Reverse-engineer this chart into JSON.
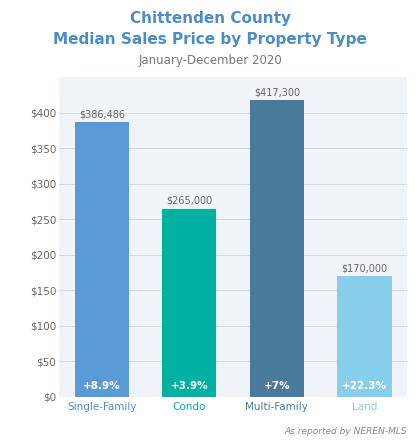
{
  "title_line1": "Chittenden County",
  "title_line2": "Median Sales Price by Property Type",
  "subtitle": "January-December 2020",
  "categories": [
    "Single-Family",
    "Condo",
    "Multi-Family",
    "Land"
  ],
  "values": [
    386486,
    265000,
    417300,
    170000
  ],
  "bar_colors": [
    "#5B9BD5",
    "#00B0A0",
    "#4A7A9B",
    "#87CEEB"
  ],
  "change_labels": [
    "+8.9%",
    "+3.9%",
    "+7%",
    "+22.3%"
  ],
  "value_labels": [
    "$386,486",
    "$265,000",
    "$417,300",
    "$170,000"
  ],
  "xlabel_colors": [
    "#4C8CC8",
    "#00B0A0",
    "#4A7A9B",
    "#87CEEB"
  ],
  "title_color": "#4C8CC8",
  "subtitle_color": "#777777",
  "yticks": [
    0,
    50000,
    100000,
    150000,
    200000,
    250000,
    300000,
    350000,
    400000
  ],
  "ytick_labels": [
    "$0",
    "$50",
    "$100",
    "$150",
    "$200",
    "$250",
    "$300",
    "$350",
    "$400"
  ],
  "ylim": [
    0,
    450000
  ],
  "background_color": "#FFFFFF",
  "plot_bg_color": "#F0F4F8",
  "footer_text": "As reported by NEREN-MLS",
  "footer_color": "#888888",
  "change_label_color": "#FFFFFF",
  "value_label_color": "#666666"
}
